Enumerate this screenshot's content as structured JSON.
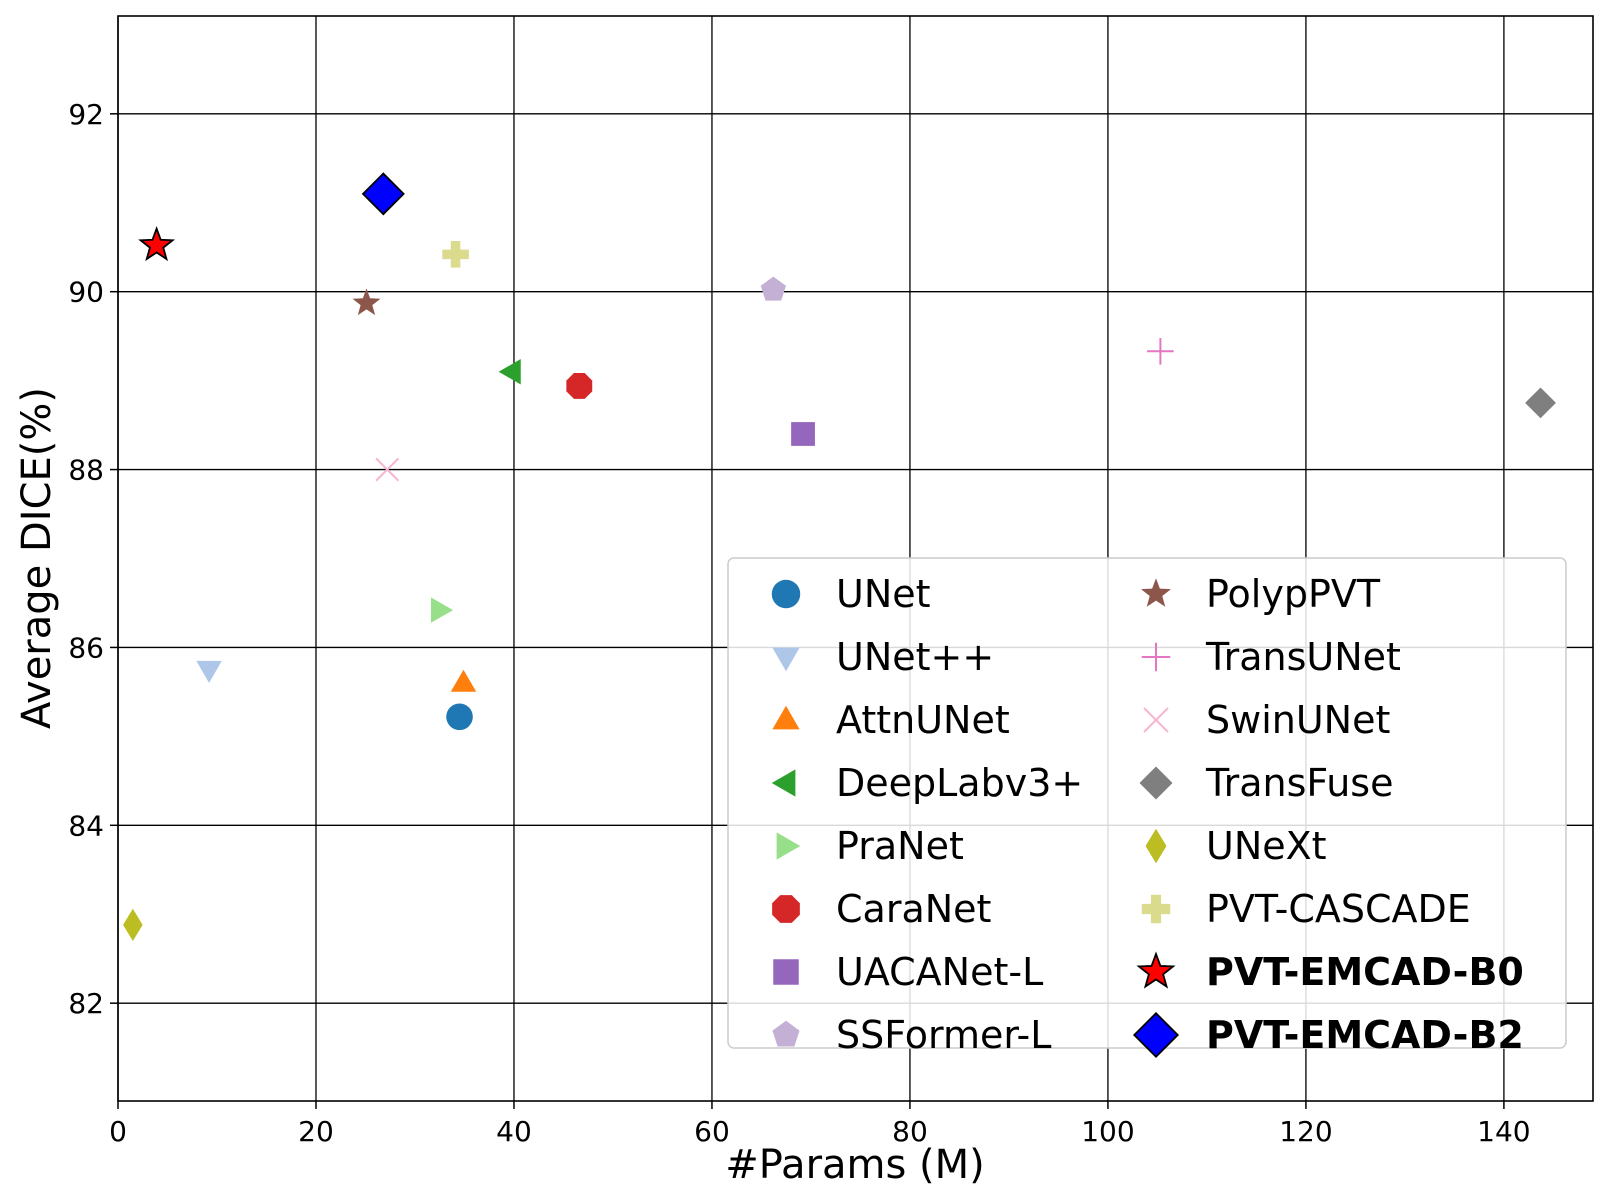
{
  "chart_data": {
    "type": "scatter",
    "xlabel": "#Params (M)",
    "ylabel": "Average DICE(%)",
    "xlim": [
      0,
      149
    ],
    "ylim": [
      80.9,
      93.1
    ],
    "x_ticks": [
      0,
      20,
      40,
      60,
      80,
      100,
      120,
      140
    ],
    "y_ticks": [
      82,
      84,
      86,
      88,
      90,
      92
    ],
    "grid": true,
    "legend_position": "lower-right",
    "legend_columns": 2,
    "series": [
      {
        "name": "UNet",
        "x": 34.5,
        "y": 85.22,
        "marker": "circle",
        "color": "#1f77b4",
        "bold": false
      },
      {
        "name": "UNet++",
        "x": 9.2,
        "y": 85.75,
        "marker": "triangle-down",
        "color": "#aec7e8",
        "bold": false
      },
      {
        "name": "AttnUNet",
        "x": 34.9,
        "y": 85.6,
        "marker": "triangle-up",
        "color": "#ff7f0e",
        "bold": false
      },
      {
        "name": "DeepLabv3+",
        "x": 39.8,
        "y": 89.1,
        "marker": "triangle-left",
        "color": "#2ca02c",
        "bold": false
      },
      {
        "name": "PraNet",
        "x": 32.5,
        "y": 86.42,
        "marker": "triangle-right",
        "color": "#98df8a",
        "bold": false
      },
      {
        "name": "CaraNet",
        "x": 46.6,
        "y": 88.94,
        "marker": "octagon",
        "color": "#d62728",
        "bold": false
      },
      {
        "name": "UACANet-L",
        "x": 69.2,
        "y": 88.4,
        "marker": "square",
        "color": "#9467bd",
        "bold": false
      },
      {
        "name": "SSFormer-L",
        "x": 66.2,
        "y": 90.02,
        "marker": "pentagon",
        "color": "#c5b0d5",
        "bold": false
      },
      {
        "name": "PolypPVT",
        "x": 25.1,
        "y": 89.87,
        "marker": "star",
        "color": "#8c564b",
        "bold": false
      },
      {
        "name": "TransUNet",
        "x": 105.3,
        "y": 89.33,
        "marker": "plus-thin",
        "color": "#e377c2",
        "bold": false
      },
      {
        "name": "SwinUNet",
        "x": 27.2,
        "y": 88.0,
        "marker": "x-thin",
        "color": "#f7b6d2",
        "bold": false
      },
      {
        "name": "TransFuse",
        "x": 143.7,
        "y": 88.75,
        "marker": "diamond",
        "color": "#7f7f7f",
        "bold": false
      },
      {
        "name": "UNeXt",
        "x": 1.5,
        "y": 82.88,
        "marker": "thin-diamond",
        "color": "#bcbd22",
        "bold": false
      },
      {
        "name": "PVT-CASCADE",
        "x": 34.1,
        "y": 90.42,
        "marker": "plus-filled",
        "color": "#dbdb8d",
        "bold": false
      },
      {
        "name": "PVT-EMCAD-B0",
        "x": 3.9,
        "y": 90.52,
        "marker": "star",
        "color": "#ff0000",
        "bold": true
      },
      {
        "name": "PVT-EMCAD-B2",
        "x": 26.8,
        "y": 91.1,
        "marker": "diamond",
        "color": "#0000ff",
        "bold": true
      }
    ]
  }
}
